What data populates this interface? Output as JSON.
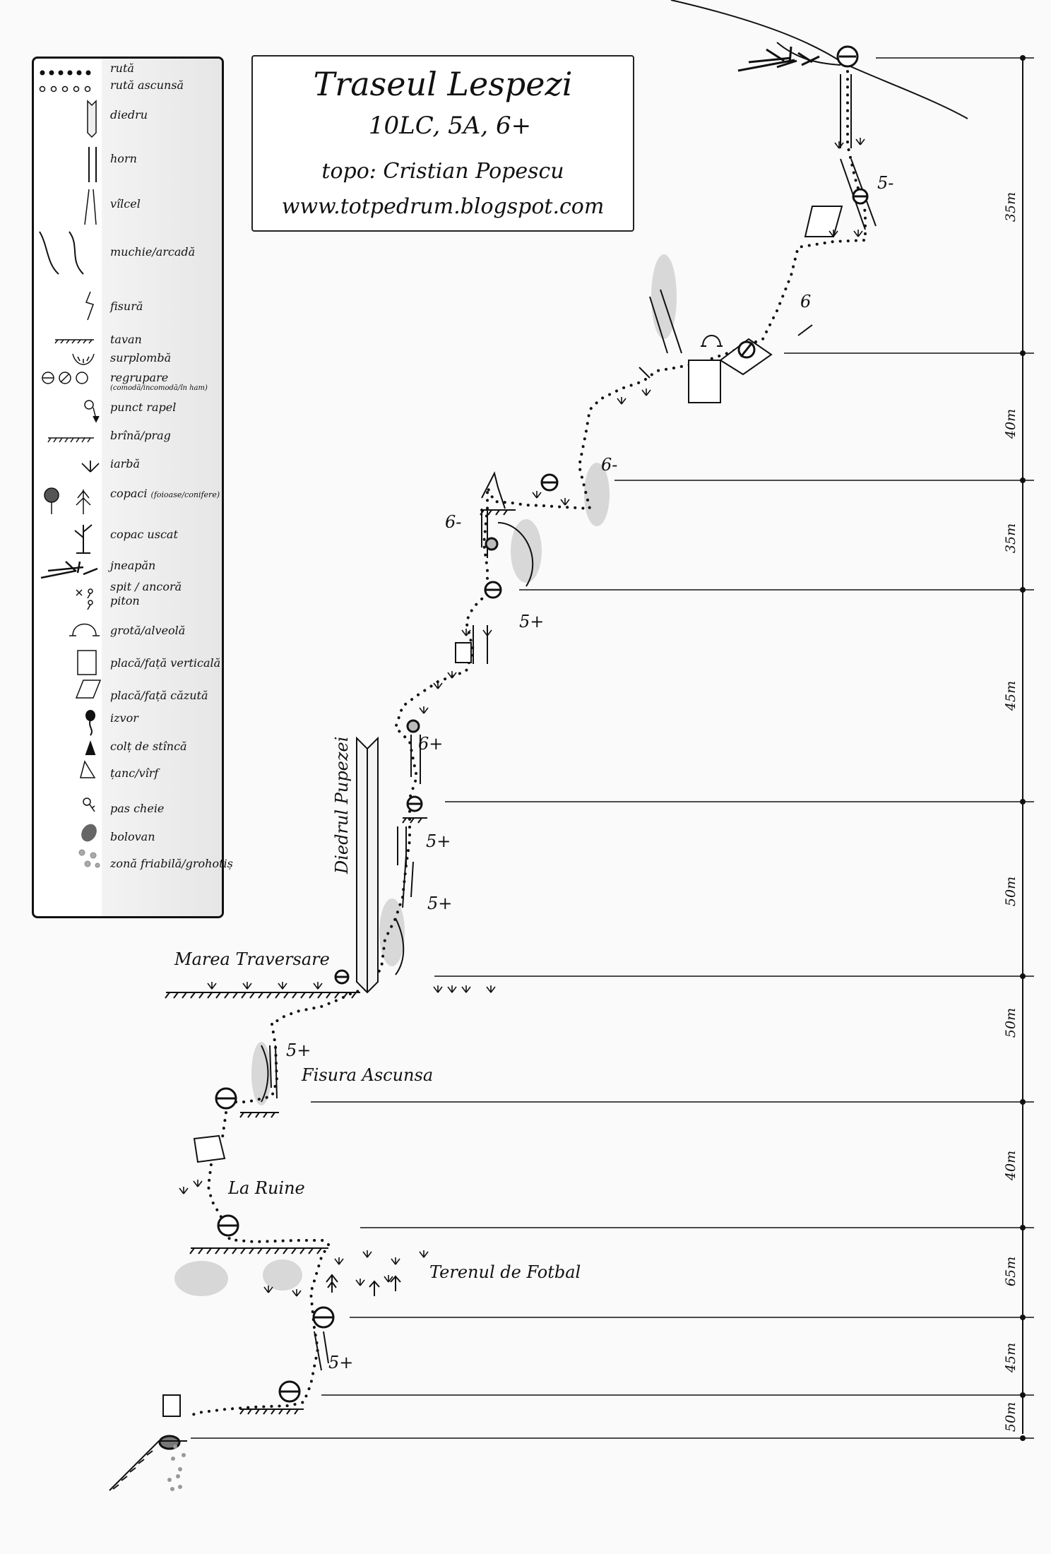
{
  "title": "Traseul Lespezi",
  "grade": "10LC,  5A, 6+",
  "author": "topo: Cristian Popescu",
  "website": "www.totpedrum.blogspot.com",
  "legend": [
    {
      "icon": "route-dots-icon",
      "label": "rută"
    },
    {
      "icon": "hidden-route-icon",
      "label": "rută ascunsă"
    },
    {
      "icon": "dihedral-icon",
      "label": "diedru"
    },
    {
      "icon": "chimney-icon",
      "label": "horn"
    },
    {
      "icon": "gully-icon",
      "label": "vîlcel"
    },
    {
      "icon": "edge-arch-icon",
      "label": "muchie/arcadă"
    },
    {
      "icon": "crack-icon",
      "label": "fisură"
    },
    {
      "icon": "roof-icon",
      "label": "tavan"
    },
    {
      "icon": "overhang-icon",
      "label": "surplombă"
    },
    {
      "icon": "belay-icon",
      "label": "regrupare",
      "sub": "(comodă/incomodă/în ham)"
    },
    {
      "icon": "rappel-point-icon",
      "label": "punct rapel"
    },
    {
      "icon": "ledge-icon",
      "label": "brînă/prag"
    },
    {
      "icon": "grass-icon",
      "label": "iarbă"
    },
    {
      "icon": "trees-icon",
      "label": "copaci",
      "sub": "(foioase/conifere)"
    },
    {
      "icon": "dead-tree-icon",
      "label": "copac uscat"
    },
    {
      "icon": "dwarf-pine-icon",
      "label": "jneapăn"
    },
    {
      "icon": "bolt-piton-icon",
      "label": "spit / ancoră",
      "label2": "piton"
    },
    {
      "icon": "cave-icon",
      "label": "grotă/alveolă"
    },
    {
      "icon": "vertical-slab-icon",
      "label": "placă/față verticală"
    },
    {
      "icon": "inclined-slab-icon",
      "label": "placă/față căzută"
    },
    {
      "icon": "spring-icon",
      "label": "izvor"
    },
    {
      "icon": "rock-spike-icon",
      "label": "colț de stîncă"
    },
    {
      "icon": "pinnacle-icon",
      "label": "țanc/vîrf"
    },
    {
      "icon": "key-step-icon",
      "label": "pas cheie"
    },
    {
      "icon": "boulder-icon",
      "label": "bolovan"
    },
    {
      "icon": "scree-icon",
      "label": "zonă friabilă/grohotiș"
    }
  ],
  "pitch_lengths": [
    "35m",
    "40m",
    "35m",
    "45m",
    "50m",
    "50m",
    "40m",
    "65m",
    "45m",
    "50m"
  ],
  "place_names": [
    "Diedrul Pupezei",
    "Marea Traversare",
    "Fisura Ascunsa",
    "La Ruine",
    "Terenul de Fotbal"
  ],
  "grades_on_route": [
    "5-",
    "6",
    "6-",
    "6-",
    "5+",
    "6+",
    "5+",
    "5+",
    "5+",
    "5+"
  ]
}
